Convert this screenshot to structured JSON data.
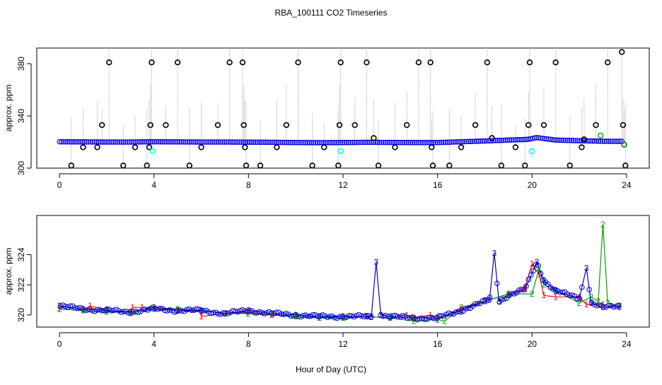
{
  "title": "RBA_100111  CO2 Timeseries",
  "xlabel": "Hour of Day (UTC)",
  "colors": {
    "median": "#0000ff",
    "series1": "#ff0000",
    "series2": "#00a000",
    "series3": "#0000cc",
    "flagged": "#00ffff",
    "raw": "#000000",
    "error_bar": "#aaaaaa"
  },
  "chart_data": [
    {
      "type": "scatter",
      "ylabel": "approx. ppm",
      "xlim": [
        0,
        24
      ],
      "ylim": [
        300,
        392
      ],
      "xticks": [
        0,
        4,
        8,
        12,
        16,
        20,
        24
      ],
      "yticks": [
        300,
        340,
        380
      ],
      "baseline": [
        [
          0,
          320.2
        ],
        [
          1,
          320.1
        ],
        [
          2,
          320.0
        ],
        [
          3,
          320.0
        ],
        [
          4,
          320.2
        ],
        [
          5,
          320.1
        ],
        [
          6,
          320.0
        ],
        [
          7,
          320.0
        ],
        [
          8,
          319.9
        ],
        [
          9,
          319.8
        ],
        [
          10,
          319.6
        ],
        [
          11,
          319.5
        ],
        [
          12,
          319.6
        ],
        [
          13,
          319.8
        ],
        [
          14,
          319.7
        ],
        [
          15,
          319.6
        ],
        [
          16,
          319.6
        ],
        [
          17,
          320.2
        ],
        [
          18,
          320.8
        ],
        [
          19,
          321.5
        ],
        [
          19.8,
          322.0
        ],
        [
          20.2,
          323.4
        ],
        [
          21,
          321.5
        ],
        [
          22,
          321.0
        ],
        [
          23,
          320.6
        ],
        [
          23.8,
          320.5
        ]
      ],
      "outliers": [
        [
          0.5,
          302
        ],
        [
          1,
          316
        ],
        [
          1.6,
          316
        ],
        [
          1.8,
          333
        ],
        [
          2.1,
          381
        ],
        [
          2.7,
          302
        ],
        [
          3.2,
          316
        ],
        [
          3.7,
          302
        ],
        [
          3.8,
          316
        ],
        [
          3.85,
          333
        ],
        [
          3.9,
          381
        ],
        [
          4.5,
          333
        ],
        [
          5.0,
          381
        ],
        [
          5.5,
          302
        ],
        [
          6.0,
          316
        ],
        [
          6.7,
          333
        ],
        [
          7.2,
          381
        ],
        [
          7.75,
          381
        ],
        [
          7.8,
          333
        ],
        [
          7.85,
          316
        ],
        [
          7.9,
          302
        ],
        [
          8.5,
          302
        ],
        [
          9.2,
          316
        ],
        [
          9.6,
          333
        ],
        [
          10.1,
          381
        ],
        [
          10.7,
          302
        ],
        [
          11.2,
          316
        ],
        [
          11.8,
          302
        ],
        [
          11.85,
          333
        ],
        [
          11.9,
          381
        ],
        [
          12.5,
          333
        ],
        [
          13.0,
          381
        ],
        [
          13.3,
          323
        ],
        [
          13.5,
          302
        ],
        [
          14.2,
          316
        ],
        [
          14.7,
          333
        ],
        [
          15.2,
          381
        ],
        [
          15.7,
          381
        ],
        [
          15.75,
          316
        ],
        [
          15.8,
          302
        ],
        [
          16.5,
          302
        ],
        [
          17.0,
          316
        ],
        [
          17.6,
          333
        ],
        [
          18.1,
          381
        ],
        [
          18.3,
          323
        ],
        [
          18.7,
          302
        ],
        [
          19.3,
          316
        ],
        [
          19.7,
          302
        ],
        [
          19.85,
          333
        ],
        [
          19.9,
          381
        ],
        [
          20.5,
          333
        ],
        [
          21.0,
          381
        ],
        [
          21.6,
          302
        ],
        [
          22.1,
          316
        ],
        [
          22.2,
          322
        ],
        [
          22.7,
          333
        ],
        [
          23.2,
          381
        ],
        [
          23.8,
          389
        ],
        [
          23.85,
          333
        ],
        [
          23.9,
          318
        ],
        [
          23.95,
          302
        ]
      ],
      "flagged": [
        [
          3.95,
          313
        ],
        [
          11.9,
          313
        ],
        [
          20.0,
          313
        ]
      ],
      "green_points": [
        [
          22.9,
          325
        ],
        [
          23.9,
          318
        ]
      ]
    },
    {
      "type": "line",
      "ylabel": "approx. ppm",
      "xlim": [
        0,
        24
      ],
      "ylim": [
        319.2,
        326.6
      ],
      "xticks": [
        0,
        4,
        8,
        12,
        16,
        20,
        24
      ],
      "yticks": [
        320,
        322,
        324
      ],
      "series": [
        {
          "name": "1",
          "values": [
            [
              0,
              320.4
            ],
            [
              1,
              320.3
            ],
            [
              1.3,
              320.6
            ],
            [
              2,
              320.3
            ],
            [
              3,
              320.2
            ],
            [
              3.1,
              320.5
            ],
            [
              3.5,
              320.5
            ],
            [
              4,
              320.5
            ],
            [
              5,
              320.3
            ],
            [
              6,
              320.2
            ],
            [
              6,
              319.9
            ],
            [
              7,
              320.1
            ],
            [
              8,
              320.2
            ],
            [
              9,
              320.0
            ],
            [
              10,
              319.9
            ],
            [
              11,
              319.8
            ],
            [
              12,
              319.9
            ],
            [
              13,
              319.9
            ],
            [
              14,
              319.8
            ],
            [
              14.7,
              320.0
            ],
            [
              15,
              319.8
            ],
            [
              15.7,
              320.0
            ],
            [
              16,
              319.7
            ],
            [
              17,
              320.4
            ],
            [
              18,
              320.9
            ],
            [
              19,
              321.4
            ],
            [
              19.7,
              321.8
            ],
            [
              20,
              323.4
            ],
            [
              20.3,
              322.7
            ],
            [
              20.5,
              321.3
            ],
            [
              21,
              321.2
            ],
            [
              22,
              321.2
            ],
            [
              22.3,
              320.7
            ],
            [
              23,
              320.7
            ],
            [
              23.7,
              320.5
            ]
          ]
        },
        {
          "name": "2",
          "values": [
            [
              0,
              320.4
            ],
            [
              1,
              320.3
            ],
            [
              2,
              320.2
            ],
            [
              3,
              320.2
            ],
            [
              3.2,
              320.2
            ],
            [
              4,
              320.5
            ],
            [
              5,
              320.4
            ],
            [
              6,
              320.3
            ],
            [
              7,
              320.1
            ],
            [
              8,
              320.1
            ],
            [
              9,
              320.0
            ],
            [
              10,
              319.9
            ],
            [
              11,
              319.8
            ],
            [
              12,
              319.8
            ],
            [
              13,
              319.9
            ],
            [
              14,
              319.8
            ],
            [
              15,
              319.6
            ],
            [
              16,
              319.7
            ],
            [
              16.3,
              319.6
            ],
            [
              17,
              320.5
            ],
            [
              18,
              320.9
            ],
            [
              19,
              321.4
            ],
            [
              20,
              321.4
            ],
            [
              20.3,
              323.1
            ],
            [
              20.5,
              322.0
            ],
            [
              21,
              321.6
            ],
            [
              22,
              320.8
            ],
            [
              22.5,
              321.2
            ],
            [
              22.8,
              320.9
            ],
            [
              23.0,
              326.0
            ],
            [
              23.2,
              320.8
            ],
            [
              23.7,
              320.5
            ]
          ]
        },
        {
          "name": "3",
          "values": [
            [
              0,
              320.6
            ],
            [
              1,
              320.4
            ],
            [
              2,
              320.3
            ],
            [
              3,
              320.2
            ],
            [
              4,
              320.4
            ],
            [
              5,
              320.3
            ],
            [
              6,
              320.3
            ],
            [
              7,
              320.1
            ],
            [
              8,
              320.3
            ],
            [
              9,
              320.1
            ],
            [
              10,
              320.0
            ],
            [
              11,
              319.9
            ],
            [
              12,
              319.9
            ],
            [
              13,
              319.9
            ],
            [
              13.2,
              319.9
            ],
            [
              13.4,
              323.5
            ],
            [
              13.6,
              320.0
            ],
            [
              14,
              319.9
            ],
            [
              15,
              319.8
            ],
            [
              16,
              319.8
            ],
            [
              17,
              320.3
            ],
            [
              18,
              320.9
            ],
            [
              18.2,
              321.0
            ],
            [
              18.4,
              324.1
            ],
            [
              18.6,
              320.9
            ],
            [
              19,
              321.3
            ],
            [
              19.7,
              321.7
            ],
            [
              20.2,
              323.5
            ],
            [
              20.5,
              322.3
            ],
            [
              21,
              321.6
            ],
            [
              22,
              321.1
            ],
            [
              22.3,
              323.1
            ],
            [
              22.5,
              320.8
            ],
            [
              23,
              320.5
            ],
            [
              23.7,
              320.6
            ]
          ]
        }
      ]
    }
  ]
}
